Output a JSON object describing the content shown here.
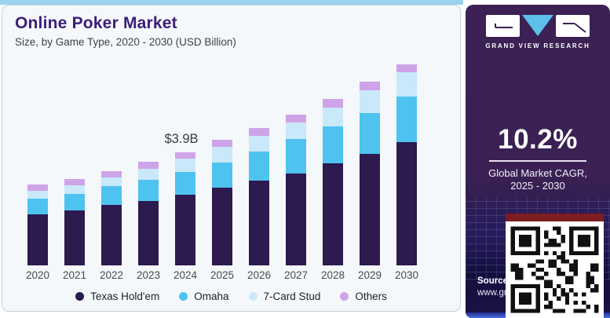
{
  "header": {
    "title": "Online Poker Market",
    "subtitle": "Size, by Game Type, 2020 - 2030 (USD Billion)"
  },
  "chart_data": {
    "type": "bar",
    "stacked": true,
    "title": "Online Poker Market",
    "subtitle": "Size, by Game Type, 2020 - 2030 (USD Billion)",
    "unit": "USD Billion",
    "categories": [
      "2020",
      "2021",
      "2022",
      "2023",
      "2024",
      "2025",
      "2026",
      "2027",
      "2028",
      "2029",
      "2030"
    ],
    "series": [
      {
        "name": "Texas Hold'em",
        "color": "#2d1a4e",
        "values": [
          1.75,
          1.9,
          2.09,
          2.22,
          2.44,
          2.68,
          2.93,
          3.17,
          3.52,
          3.85,
          4.25
        ]
      },
      {
        "name": "Omaha",
        "color": "#4ec3ef",
        "values": [
          0.55,
          0.57,
          0.65,
          0.73,
          0.79,
          0.87,
          1.0,
          1.19,
          1.27,
          1.41,
          1.57
        ]
      },
      {
        "name": "7-Card Stud",
        "color": "#c9e8fa",
        "values": [
          0.27,
          0.3,
          0.3,
          0.38,
          0.45,
          0.54,
          0.54,
          0.57,
          0.65,
          0.79,
          0.84
        ]
      },
      {
        "name": "Others",
        "color": "#cfa3e8",
        "values": [
          0.22,
          0.22,
          0.22,
          0.24,
          0.22,
          0.24,
          0.27,
          0.27,
          0.3,
          0.3,
          0.27
        ]
      }
    ],
    "totals_estimated": [
      2.79,
      2.99,
      3.26,
      3.57,
      3.9,
      4.33,
      4.74,
      5.2,
      5.74,
      6.35,
      6.93
    ],
    "annotation": {
      "text": "$3.9B",
      "year": "2024",
      "value_billion": 3.9
    },
    "ylim": [
      0,
      7.5
    ],
    "grid": false,
    "legend_position": "bottom"
  },
  "sidebar": {
    "logo": {
      "text": "GRAND VIEW RESEARCH"
    },
    "cagr": {
      "value": "10.2%",
      "label_line1": "Global Market CAGR,",
      "label_line2": "2025 - 2030"
    },
    "source": {
      "label": "Source:",
      "url_visible": "www.gra"
    }
  },
  "colors": {
    "accent_strip": "#9bd2ee",
    "card_background": "#f4f8fb",
    "title_text": "#3b1e78",
    "panel_background": "#3b2154",
    "qr_top_bar": "#7d1d22"
  }
}
